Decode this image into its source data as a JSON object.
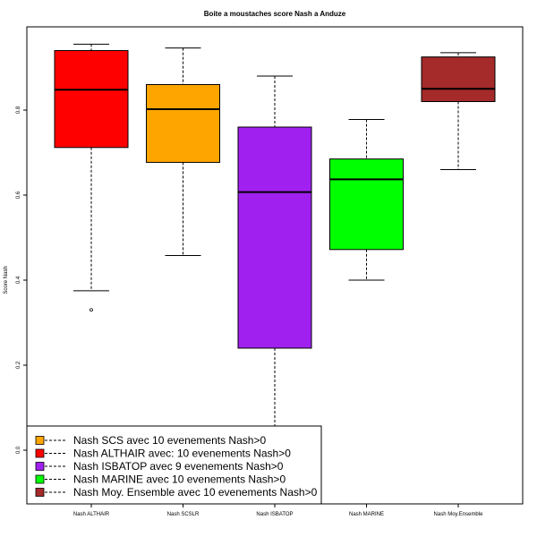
{
  "chart_data": {
    "type": "boxplot",
    "title": "Boite a moustaches score Nash a Anduze",
    "xlabel": "",
    "ylabel": "Score Nash",
    "ylim": [
      -0.1,
      0.99
    ],
    "yticks": [
      0.0,
      0.2,
      0.4,
      0.6,
      0.8
    ],
    "grid": false,
    "legend_position": "bottom-left",
    "series": [
      {
        "category": "Nash ALTHAIR",
        "color": "#ff0000",
        "min": 0.375,
        "q1": 0.712,
        "median": 0.848,
        "q3": 0.94,
        "max": 0.955,
        "outliers": [
          0.33
        ]
      },
      {
        "category": "Nash SCSLR",
        "color": "#ffa500",
        "min": 0.458,
        "q1": 0.677,
        "median": 0.802,
        "q3": 0.86,
        "max": 0.946,
        "outliers": []
      },
      {
        "category": "Nash ISBATOP",
        "color": "#a020f0",
        "min": 0.05,
        "q1": 0.24,
        "median": 0.607,
        "q3": 0.76,
        "max": 0.88,
        "outliers": []
      },
      {
        "category": "Nash MARINE",
        "color": "#00ff00",
        "min": 0.4,
        "q1": 0.472,
        "median": 0.637,
        "q3": 0.685,
        "max": 0.778,
        "outliers": []
      },
      {
        "category": "Nash Moy.Ensemble",
        "color": "#a52a2a",
        "min": 0.66,
        "q1": 0.82,
        "median": 0.85,
        "q3": 0.925,
        "max": 0.935,
        "outliers": []
      }
    ],
    "legend": [
      {
        "label": "Nash SCS avec 10 evenements Nash>0",
        "color": "#ffa500"
      },
      {
        "label": "Nash ALTHAIR avec: 10 evenements Nash>0",
        "color": "#ff0000"
      },
      {
        "label": "Nash ISBATOP avec 9 evenements Nash>0",
        "color": "#a020f0"
      },
      {
        "label": "Nash MARINE avec 10 evenements Nash>0",
        "color": "#00ff00"
      },
      {
        "label": "Nash Moy. Ensemble avec 10 evenements Nash>0",
        "color": "#a52a2a"
      }
    ]
  }
}
